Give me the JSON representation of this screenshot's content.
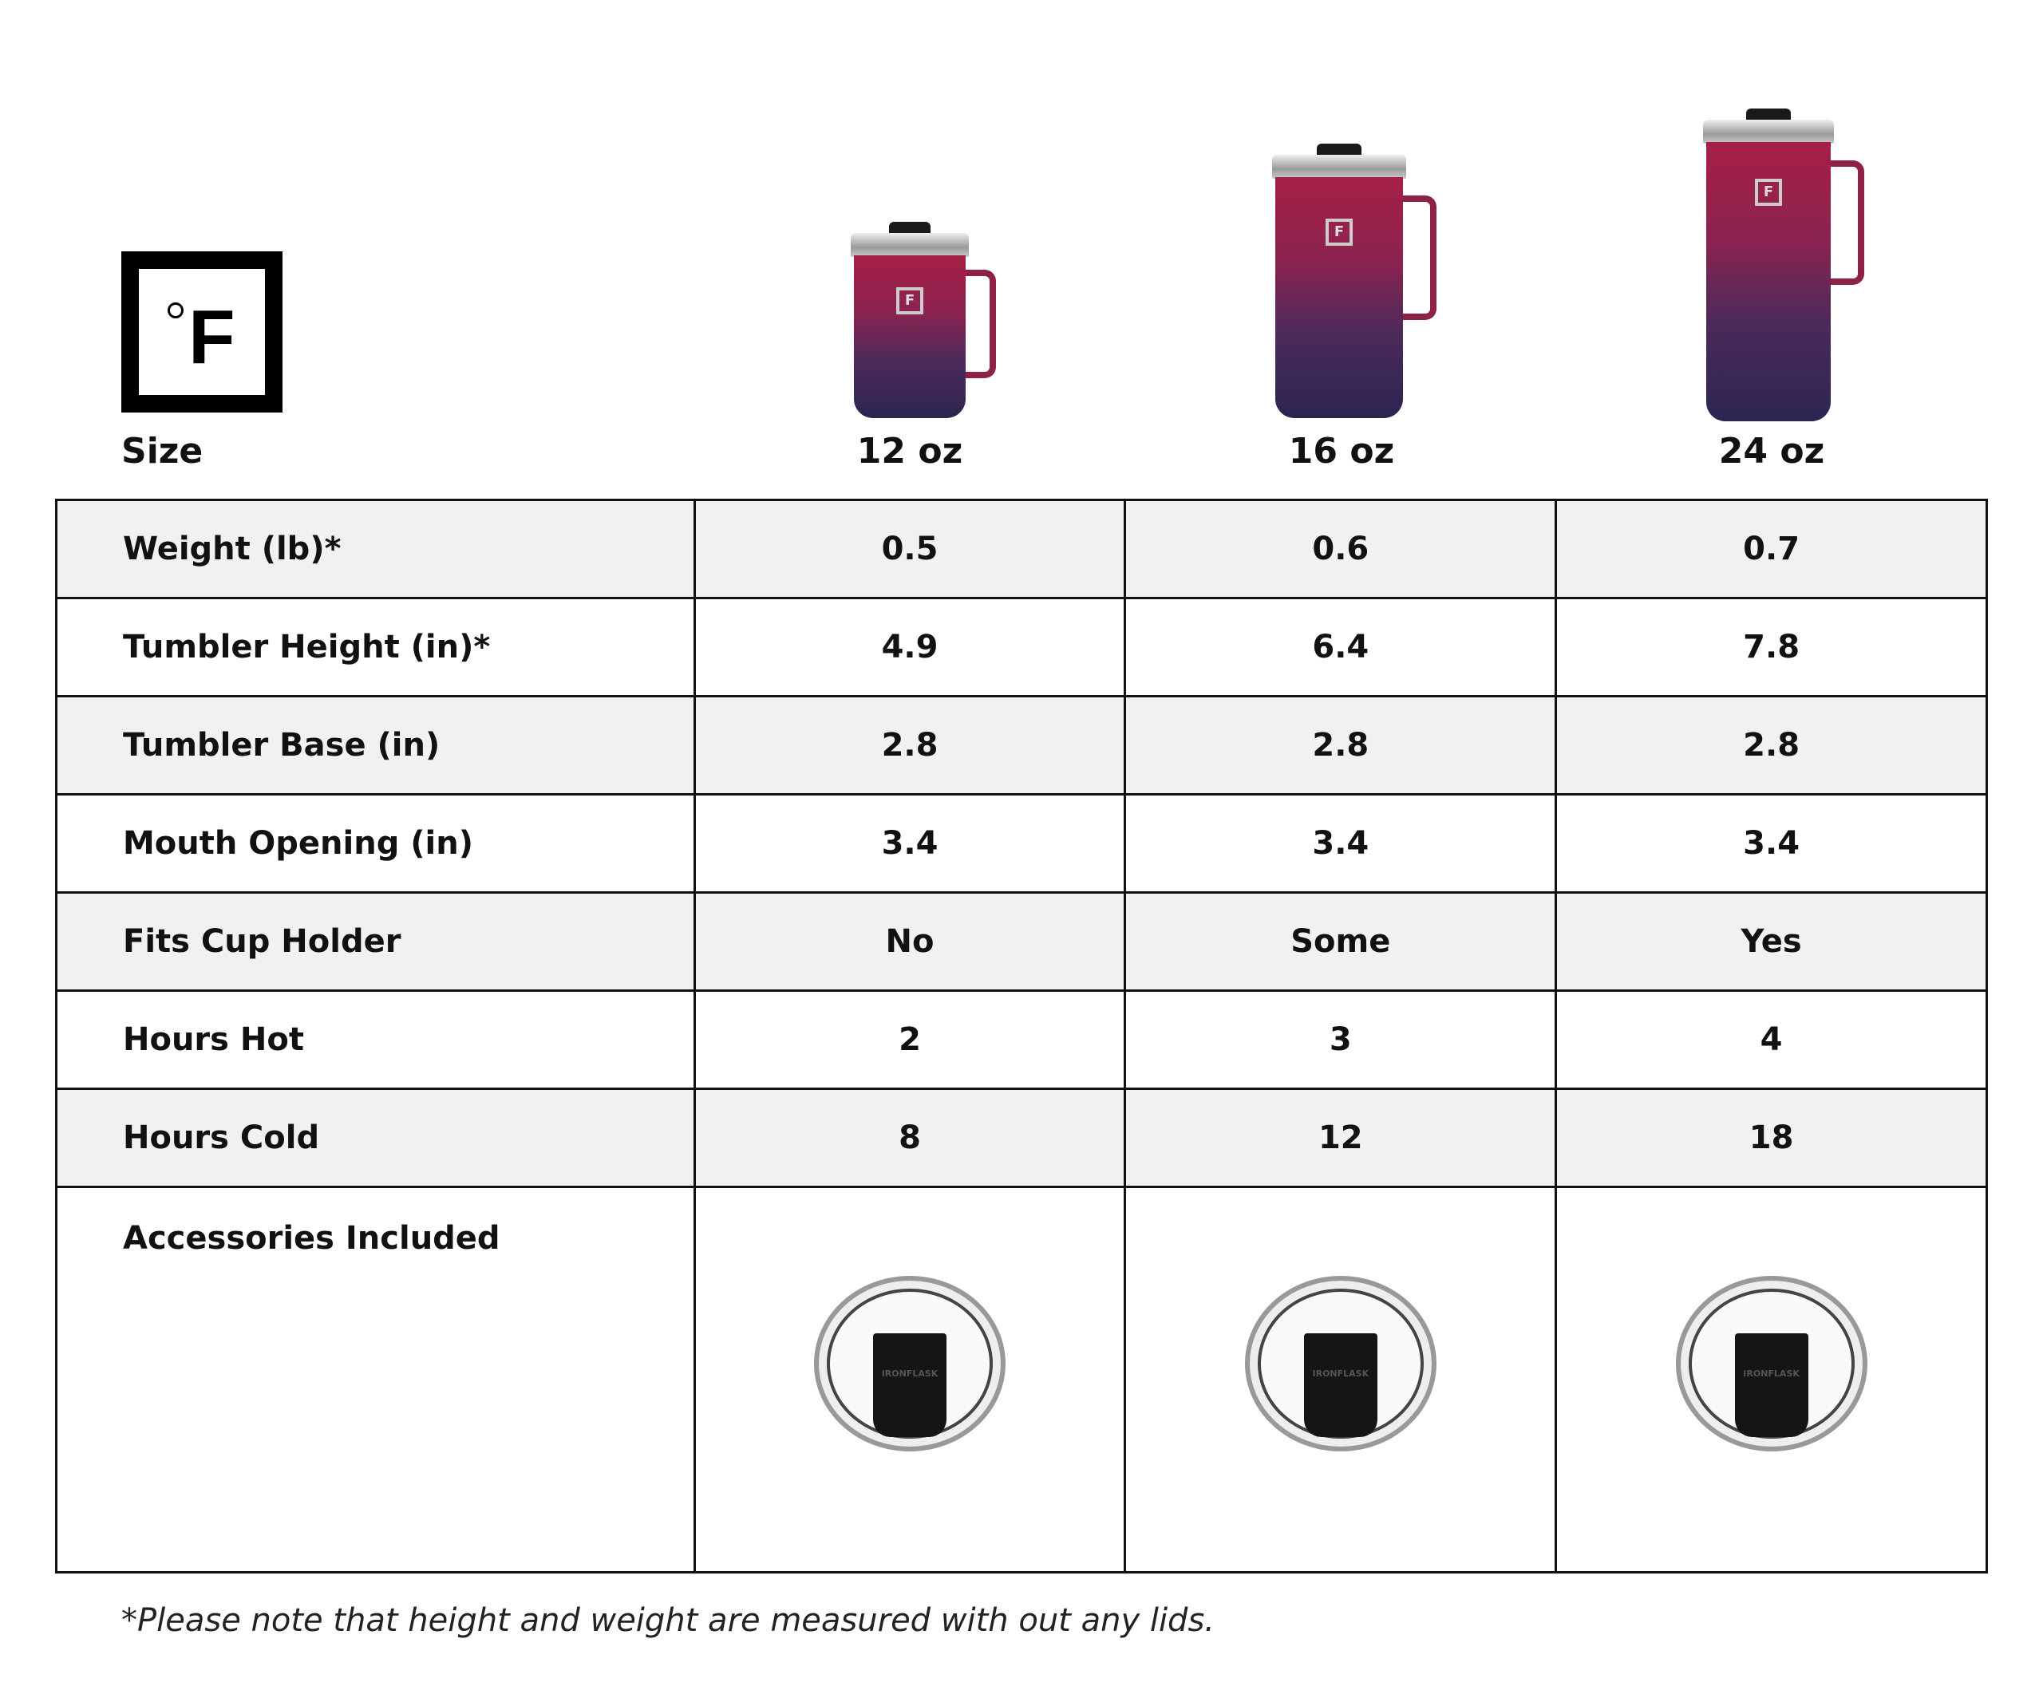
{
  "brand": {
    "logo_text": "°F"
  },
  "header": {
    "size_label": "Size",
    "sizes": [
      "12 oz",
      "16 oz",
      "24 oz"
    ]
  },
  "colors": {
    "tumbler_top": "#a61f45",
    "tumbler_bottom": "#2c2550",
    "shaded_row": "#f1f1f1"
  },
  "rows": [
    {
      "label": "Weight (lb)*",
      "values": [
        "0.5",
        "0.6",
        "0.7"
      ]
    },
    {
      "label": "Tumbler Height (in)*",
      "values": [
        "4.9",
        "6.4",
        "7.8"
      ]
    },
    {
      "label": "Tumbler Base (in)",
      "values": [
        "2.8",
        "2.8",
        "2.8"
      ]
    },
    {
      "label": "Mouth Opening (in)",
      "values": [
        "3.4",
        "3.4",
        "3.4"
      ]
    },
    {
      "label": "Fits Cup Holder",
      "values": [
        "No",
        "Some",
        "Yes"
      ]
    },
    {
      "label": "Hours Hot",
      "values": [
        "2",
        "3",
        "4"
      ]
    },
    {
      "label": "Hours Cold",
      "values": [
        "8",
        "12",
        "18"
      ]
    }
  ],
  "accessories": {
    "label": "Accessories Included",
    "lid_text": "IRONFLASK"
  },
  "footnote": "*Please note that height and weight are measured with out any lids."
}
